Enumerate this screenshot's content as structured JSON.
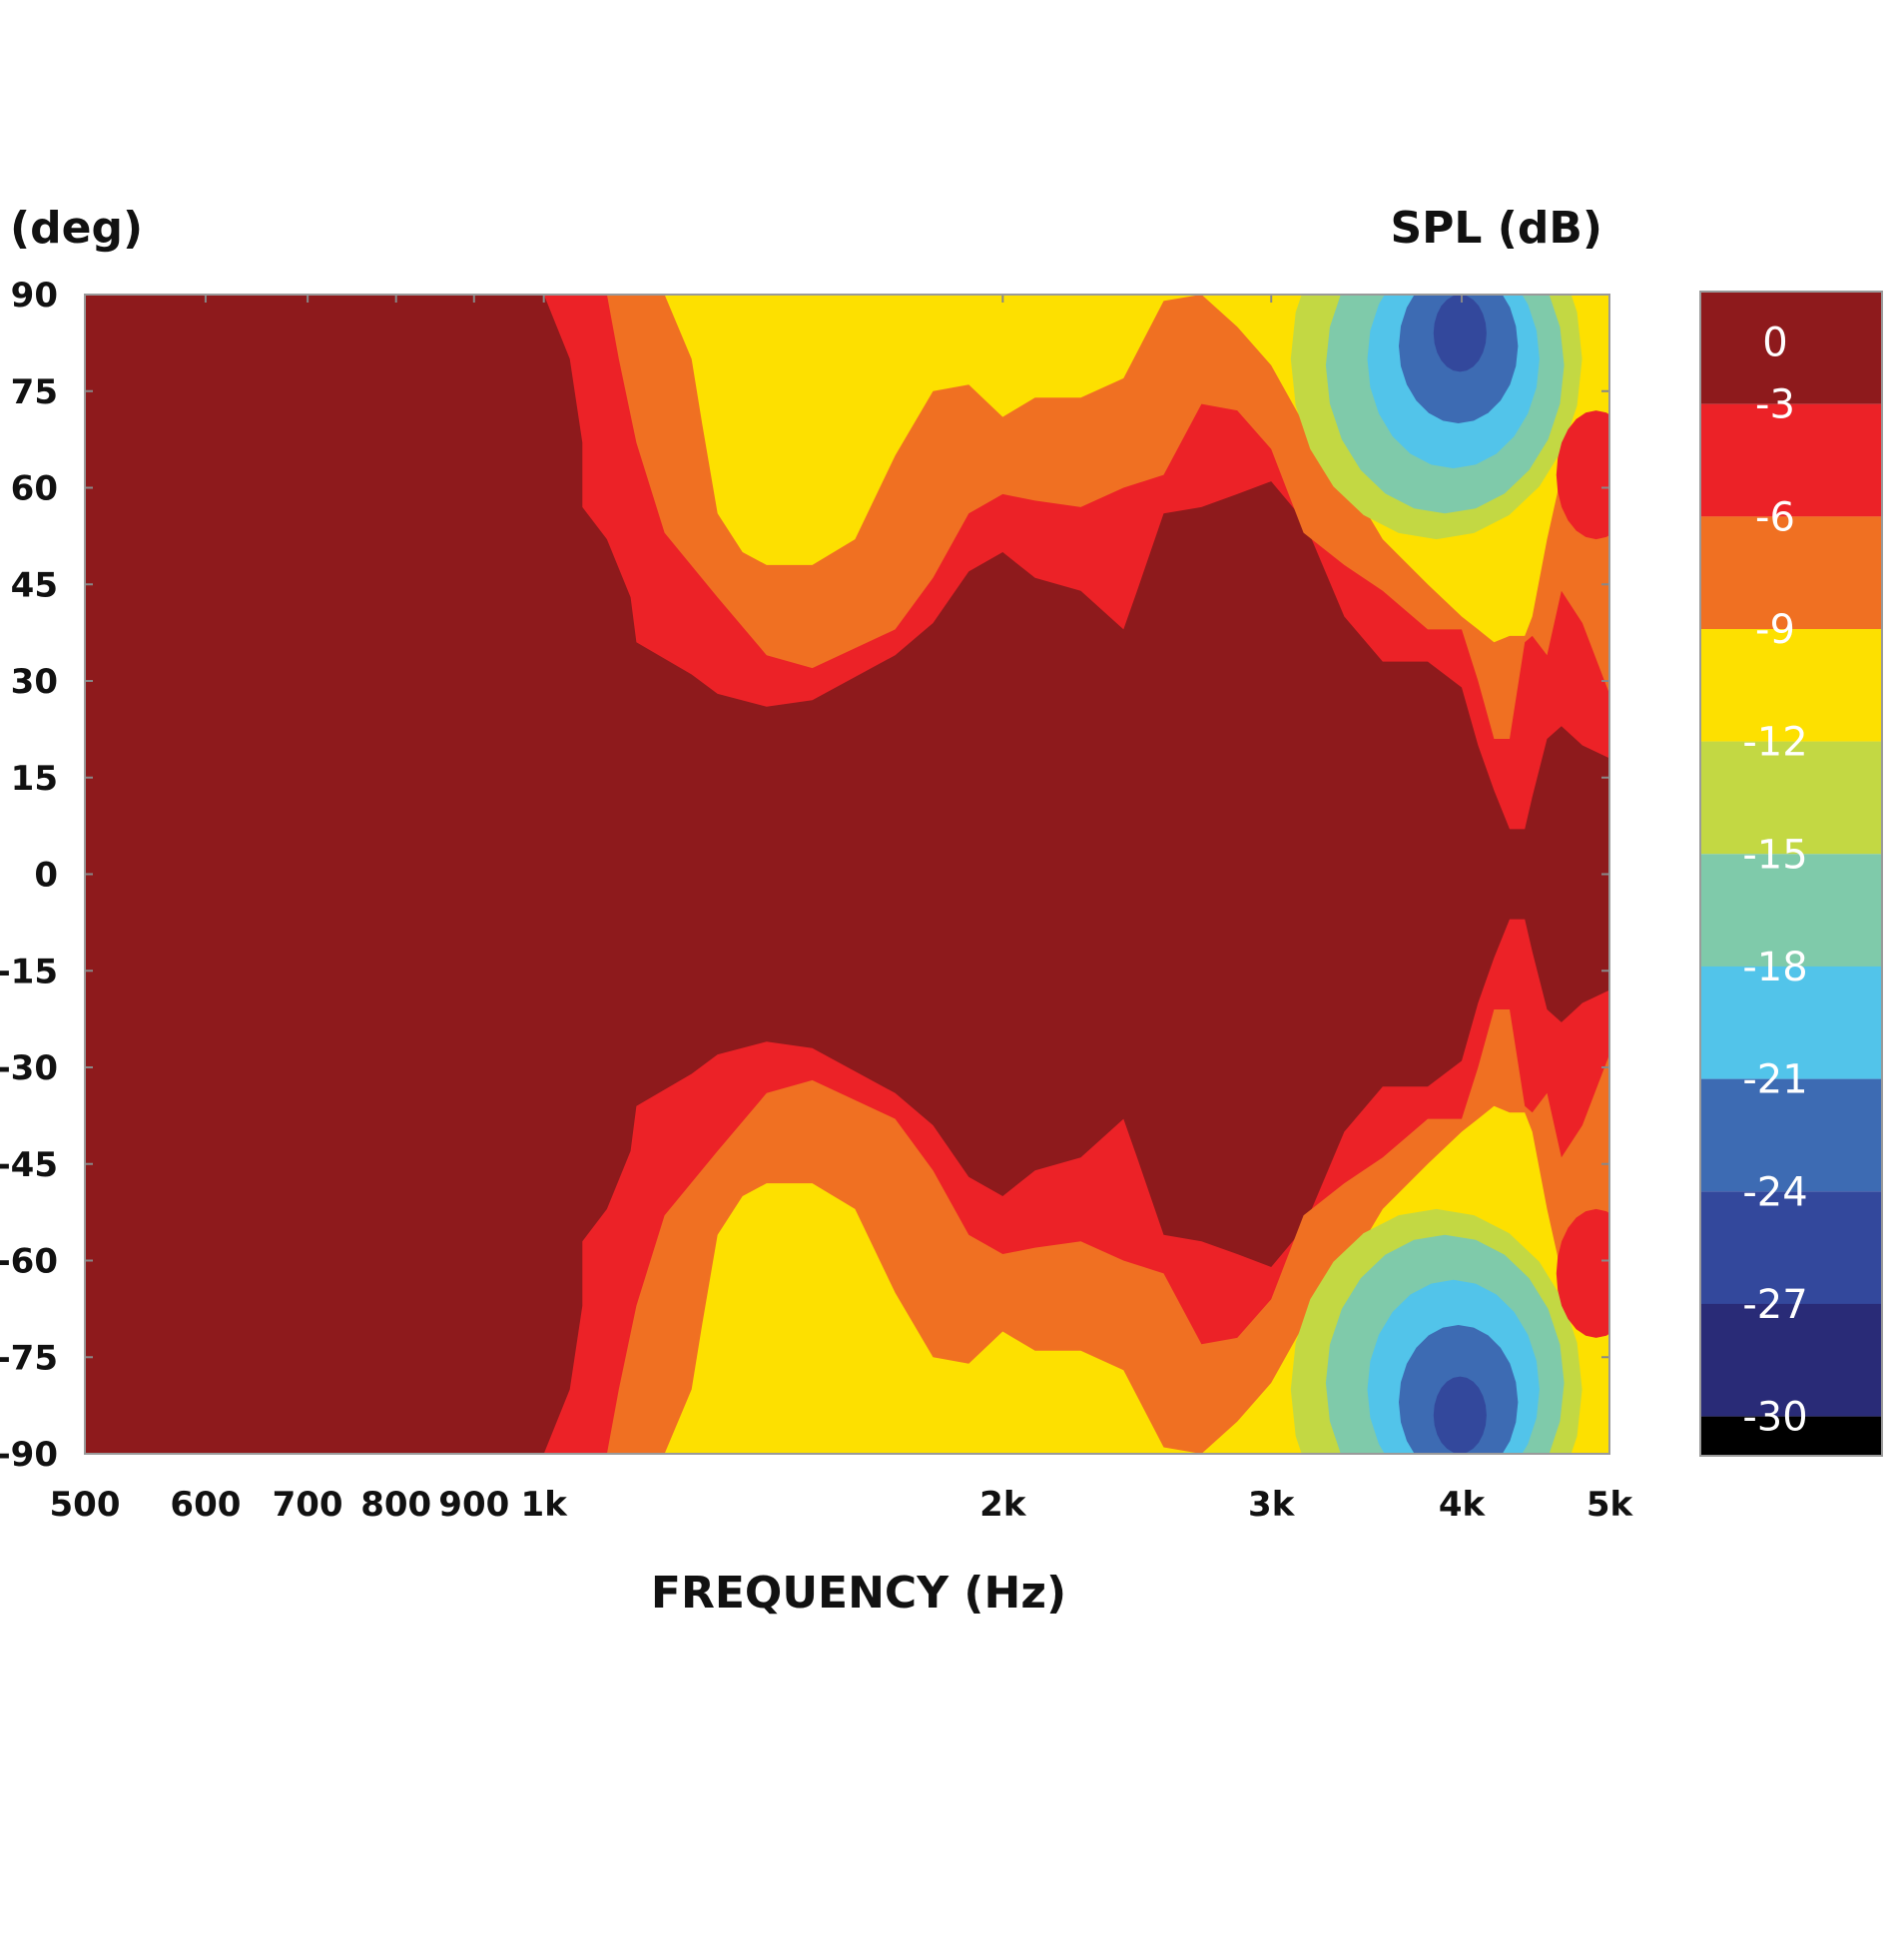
{
  "chart_data": {
    "type": "heatmap",
    "title": "",
    "ylabel": "(deg)",
    "xlabel": "FREQUENCY (Hz)",
    "colorbar_label": "SPL (dB)",
    "x_scale": "log",
    "x_range": [
      500,
      5000
    ],
    "y_range": [
      -90,
      90
    ],
    "x_ticks": [
      {
        "value": 500,
        "label": "500"
      },
      {
        "value": 600,
        "label": "600"
      },
      {
        "value": 700,
        "label": "700"
      },
      {
        "value": 800,
        "label": "800"
      },
      {
        "value": 900,
        "label": "900"
      },
      {
        "value": 1000,
        "label": "1k"
      },
      {
        "value": 2000,
        "label": "2k"
      },
      {
        "value": 3000,
        "label": "3k"
      },
      {
        "value": 4000,
        "label": "4k"
      },
      {
        "value": 5000,
        "label": "5k"
      }
    ],
    "y_ticks": [
      {
        "value": 90,
        "label": "90"
      },
      {
        "value": 75,
        "label": "75"
      },
      {
        "value": 60,
        "label": "60"
      },
      {
        "value": 45,
        "label": "45"
      },
      {
        "value": 30,
        "label": "30"
      },
      {
        "value": 15,
        "label": "15"
      },
      {
        "value": 0,
        "label": "0"
      },
      {
        "value": -15,
        "label": "-15"
      },
      {
        "value": -30,
        "label": "-30"
      },
      {
        "value": -45,
        "label": "-45"
      },
      {
        "value": -60,
        "label": "-60"
      },
      {
        "value": -75,
        "label": "-75"
      },
      {
        "value": -90,
        "label": "-90"
      }
    ],
    "colorbar": {
      "levels": [
        "0",
        "-3",
        "-6",
        "-9",
        "-12",
        "-15",
        "-18",
        "-21",
        "-24",
        "-27",
        "-30"
      ],
      "colors": [
        "#8e1a1c",
        "#ec2227",
        "#f07022",
        "#fde000",
        "#c3d843",
        "#7fcaaa",
        "#52c4ea",
        "#3d6bb3",
        "#33489c",
        "#292b77",
        "#000000"
      ]
    },
    "contour_boundaries_upper_half": [
      {
        "level": "-3",
        "points": [
          [
            1000,
            90
          ],
          [
            1040,
            80
          ],
          [
            1060,
            67
          ],
          [
            1060,
            57
          ],
          [
            1100,
            52
          ],
          [
            1140,
            43
          ],
          [
            1150,
            36
          ],
          [
            1250,
            31
          ],
          [
            1300,
            28
          ],
          [
            1400,
            26
          ],
          [
            1500,
            27
          ],
          [
            1700,
            34
          ],
          [
            1800,
            39
          ],
          [
            1900,
            47
          ],
          [
            2000,
            50
          ],
          [
            2100,
            46
          ],
          [
            2250,
            44
          ],
          [
            2400,
            38
          ],
          [
            2450,
            44
          ],
          [
            2550,
            56
          ],
          [
            2700,
            57
          ],
          [
            2850,
            59
          ],
          [
            3000,
            61
          ],
          [
            3150,
            55
          ],
          [
            3350,
            40
          ],
          [
            3550,
            33
          ],
          [
            3800,
            33
          ],
          [
            4000,
            29
          ],
          [
            4100,
            20
          ],
          [
            4200,
            13
          ],
          [
            4300,
            7
          ],
          [
            4400,
            7
          ],
          [
            4450,
            12
          ],
          [
            4550,
            21
          ],
          [
            4650,
            23
          ],
          [
            4800,
            20
          ],
          [
            5000,
            18
          ]
        ]
      },
      {
        "level": "-6",
        "points": [
          [
            1100,
            90
          ],
          [
            1120,
            80
          ],
          [
            1150,
            67
          ],
          [
            1200,
            53
          ],
          [
            1300,
            43
          ],
          [
            1400,
            34
          ],
          [
            1500,
            32
          ],
          [
            1700,
            38
          ],
          [
            1800,
            46
          ],
          [
            1900,
            56
          ],
          [
            2000,
            59
          ],
          [
            2100,
            58
          ],
          [
            2250,
            57
          ],
          [
            2400,
            60
          ],
          [
            2550,
            62
          ],
          [
            2700,
            73
          ],
          [
            2850,
            72
          ],
          [
            3000,
            66
          ],
          [
            3150,
            53
          ],
          [
            3350,
            48
          ],
          [
            3550,
            44
          ],
          [
            3800,
            38
          ],
          [
            4000,
            38
          ],
          [
            4100,
            30
          ],
          [
            4200,
            21
          ],
          [
            4300,
            21
          ],
          [
            4400,
            36
          ],
          [
            4450,
            37
          ],
          [
            4550,
            34
          ],
          [
            4650,
            44
          ],
          [
            4800,
            39
          ],
          [
            5000,
            28
          ]
        ]
      },
      {
        "level": "-9",
        "points": [
          [
            1200,
            90
          ],
          [
            1250,
            80
          ],
          [
            1270,
            70
          ],
          [
            1300,
            56
          ],
          [
            1350,
            50
          ],
          [
            1400,
            48
          ],
          [
            1500,
            48
          ],
          [
            1600,
            52
          ],
          [
            1700,
            65
          ],
          [
            1800,
            75
          ],
          [
            1900,
            76
          ],
          [
            2000,
            71
          ],
          [
            2100,
            74
          ],
          [
            2250,
            74
          ],
          [
            2400,
            77
          ],
          [
            2550,
            89
          ],
          [
            2700,
            90
          ],
          [
            2850,
            85
          ],
          [
            3000,
            79
          ],
          [
            3150,
            70
          ],
          [
            3350,
            62
          ],
          [
            3550,
            52
          ],
          [
            3800,
            45
          ],
          [
            4000,
            40
          ],
          [
            4100,
            38
          ],
          [
            4200,
            36
          ],
          [
            4300,
            37
          ],
          [
            4400,
            37
          ],
          [
            4450,
            40
          ],
          [
            4550,
            52
          ],
          [
            4650,
            62
          ],
          [
            4800,
            67
          ],
          [
            5000,
            64
          ]
        ]
      }
    ],
    "notes": "Polar directivity heatmap, symmetric about 0 deg; deep blue (-24 to -27 dB) minima near 4k at +/-80 deg."
  }
}
